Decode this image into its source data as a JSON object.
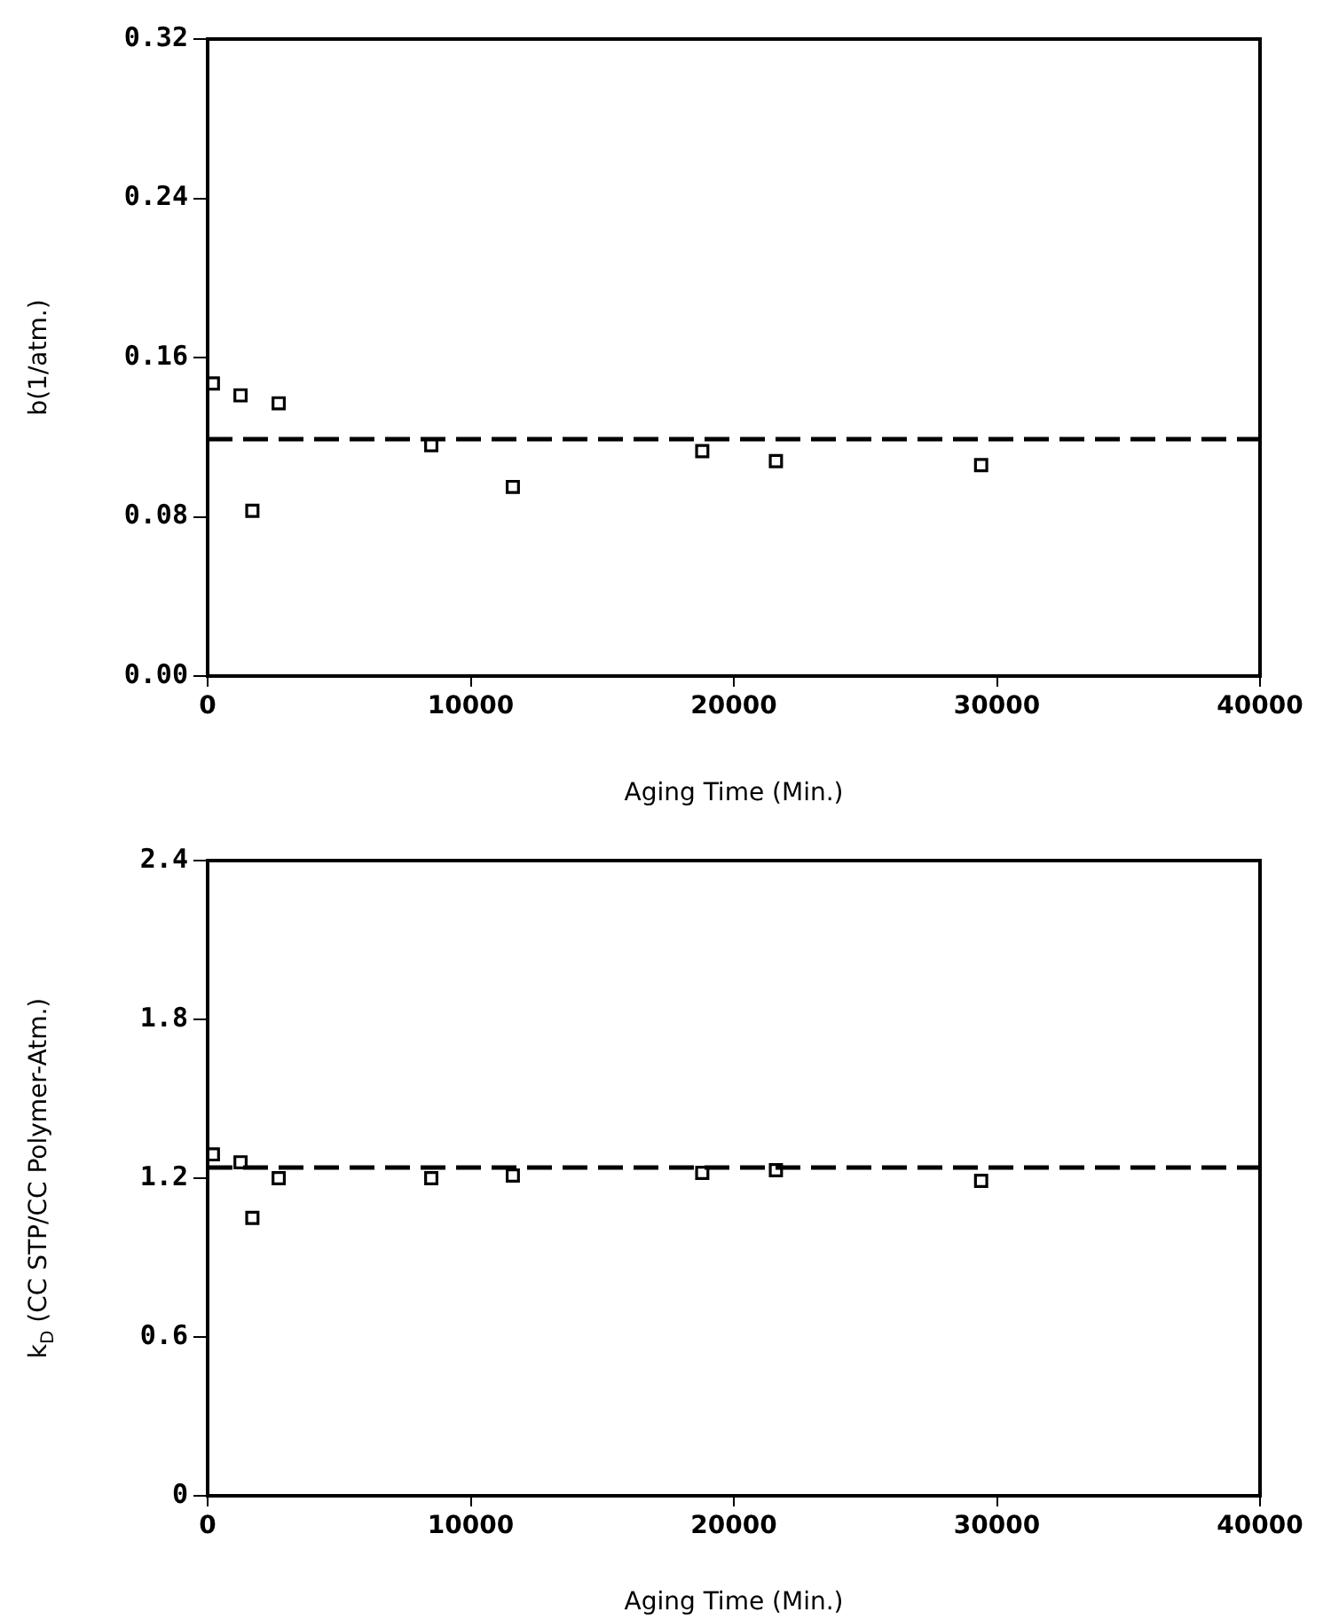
{
  "chart_data": [
    {
      "type": "scatter",
      "xlabel": "Aging Time (Min.)",
      "ylabel": "b(1/atm.)",
      "x": [
        200,
        1250,
        1700,
        2700,
        8500,
        11600,
        18800,
        21600,
        29400
      ],
      "series": [
        {
          "color": "#000000",
          "values": [
            0.147,
            0.141,
            0.083,
            0.137,
            0.116,
            0.095,
            0.113,
            0.108,
            0.106
          ]
        }
      ],
      "xlim": [
        0,
        40000
      ],
      "xticks": [
        0,
        10000,
        20000,
        30000,
        40000
      ],
      "ylim": [
        0,
        0.32
      ],
      "yticks": [
        {
          "value": 0,
          "label": "0.00"
        },
        0.08,
        0.16,
        0.24,
        0.32
      ],
      "ref_lines": [
        {
          "axis": "y",
          "value": 0.119,
          "color": "#000000",
          "line_style": "dashed"
        }
      ],
      "marker": "square",
      "grid": false,
      "legend": false
    },
    {
      "type": "scatter",
      "xlabel": "Aging Time (Min.)",
      "ylabel": "k$_{D}$ (CC STP/CC Polymer-Atm.)",
      "x": [
        200,
        1250,
        1700,
        2700,
        8500,
        11600,
        18800,
        21600,
        29400
      ],
      "series": [
        {
          "color": "#000000",
          "values": [
            1.29,
            1.26,
            1.05,
            1.2,
            1.2,
            1.21,
            1.22,
            1.23,
            1.19
          ]
        }
      ],
      "xlim": [
        0,
        40000
      ],
      "xticks": [
        0,
        10000,
        20000,
        30000,
        40000
      ],
      "ylim": [
        0,
        2.4
      ],
      "yticks": [
        0,
        0.6,
        1.2,
        1.8,
        2.4
      ],
      "ref_lines": [
        {
          "axis": "y",
          "value": 1.24,
          "color": "#000000",
          "line_style": "dashed"
        }
      ],
      "marker": "square",
      "grid": false,
      "legend": false
    }
  ]
}
